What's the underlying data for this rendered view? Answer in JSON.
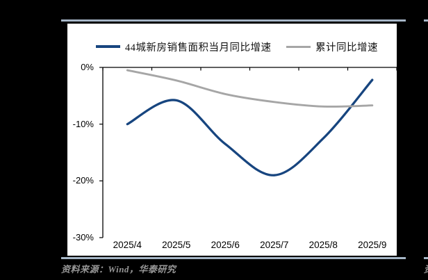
{
  "page": {
    "background": "#000000",
    "panel_background": "#ffffff",
    "rule_color": "#a6b6c7",
    "source_note": "资料来源：Wind，华泰研究",
    "source_note_color": "#979797",
    "adjacent_source_fragment": "资"
  },
  "chart_data": {
    "type": "line",
    "smoothed": true,
    "grid": false,
    "legend_position": "top",
    "categories": [
      "2025/4",
      "2025/5",
      "2025/6",
      "2025/7",
      "2025/8",
      "2025/9"
    ],
    "series": [
      {
        "name": "44城新房销售面积当月同比增速",
        "color": "#17457f",
        "values": [
          -10,
          -5.8,
          -13.5,
          -19,
          -12.5,
          -2.2
        ]
      },
      {
        "name": "累计同比增速",
        "color": "#a6a6a6",
        "values": [
          -0.5,
          -2.3,
          -4.7,
          -6.1,
          -6.9,
          -6.7
        ]
      }
    ],
    "ylim": [
      -30,
      0
    ],
    "yticks": [
      0,
      -10,
      -20,
      -30
    ],
    "ytick_labels": [
      "0%",
      "-10%",
      "-20%",
      "-30%"
    ],
    "axis_color": "#000000"
  }
}
